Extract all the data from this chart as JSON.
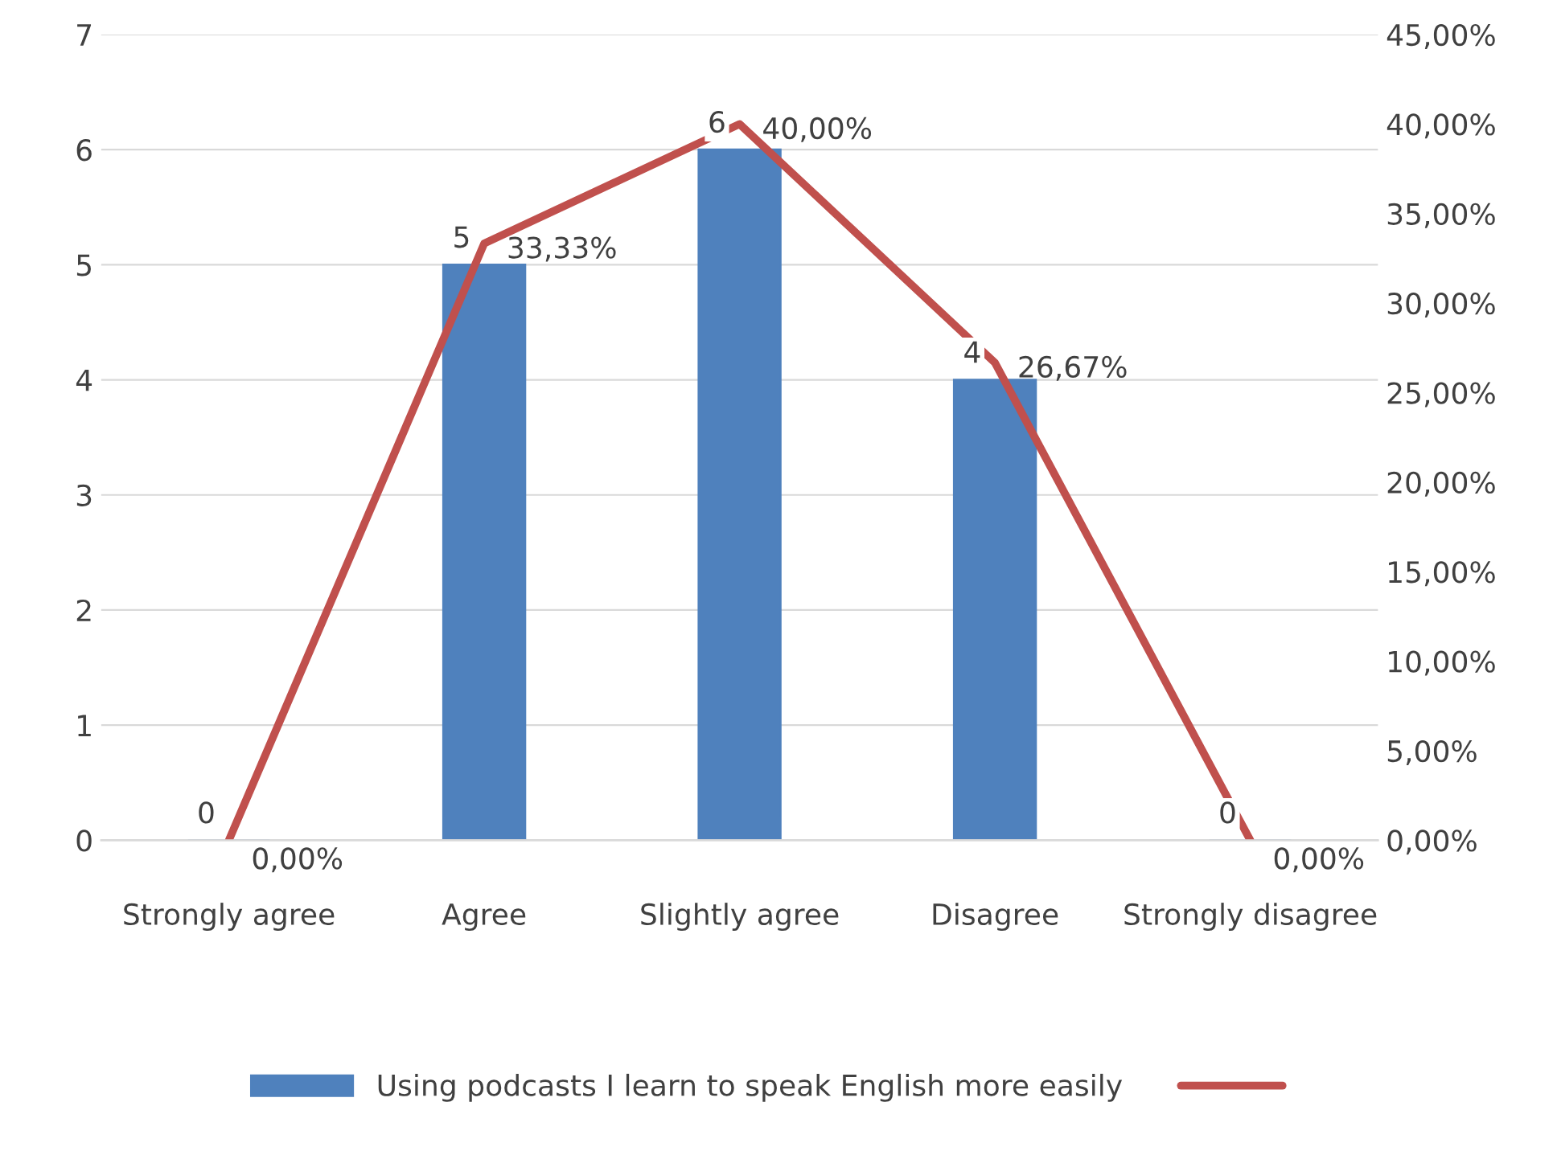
{
  "chart_data": {
    "type": "bar",
    "categories": [
      "Strongly agree",
      "Agree",
      "Slightly agree",
      "Disagree",
      "Strongly disagree"
    ],
    "series": [
      {
        "name": "Using podcasts I learn to speak English more easily",
        "color": "#4f81bd",
        "values": [
          0,
          5,
          6,
          4,
          0
        ],
        "value_labels": [
          "0",
          "5",
          "6",
          "4",
          "0"
        ]
      },
      {
        "type": "line",
        "axis": "y2",
        "color": "#c0504d",
        "values": [
          0,
          33.33,
          40,
          26.67,
          0
        ],
        "value_labels": [
          "0,00%",
          "33,33%",
          "40,00%",
          "26,67%",
          "0,00%"
        ]
      }
    ],
    "ylim": [
      0,
      7
    ],
    "yticks": [
      0,
      1,
      2,
      3,
      4,
      5,
      6,
      7
    ],
    "y2lim": [
      0,
      45
    ],
    "y2ticks": [
      {
        "value": 0,
        "label": "0,00%"
      },
      {
        "value": 5,
        "label": "5,00%"
      },
      {
        "value": 10,
        "label": "10,00%"
      },
      {
        "value": 15,
        "label": "15,00%"
      },
      {
        "value": 20,
        "label": "20,00%"
      },
      {
        "value": 25,
        "label": "25,00%"
      },
      {
        "value": 30,
        "label": "30,00%"
      },
      {
        "value": 35,
        "label": "35,00%"
      },
      {
        "value": 40,
        "label": "40,00%"
      },
      {
        "value": 45,
        "label": "45,00%"
      }
    ],
    "grid": "y",
    "legend": "bottom",
    "marker": "none",
    "line_style": "solid"
  }
}
